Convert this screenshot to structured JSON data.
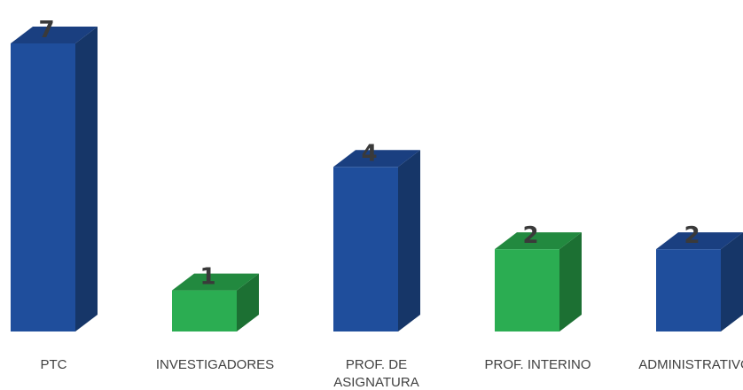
{
  "chart_data": {
    "type": "bar",
    "categories": [
      "PTC",
      "INVESTIGADORES",
      "PROF. DE ASIGNATURA",
      "PROF. INTERINO",
      "ADMINISTRATIVOS"
    ],
    "category_lines": [
      [
        "PTC"
      ],
      [
        "INVESTIGADORES"
      ],
      [
        "PROF. DE",
        "ASIGNATURA"
      ],
      [
        "PROF. INTERINO"
      ],
      [
        "ADMINISTRATIVOS"
      ]
    ],
    "values": [
      7,
      1,
      4,
      2,
      2
    ],
    "value_labels": [
      "7",
      "1",
      "4",
      "2",
      "2"
    ],
    "bar_colors": [
      "blue",
      "green",
      "blue",
      "green",
      "blue"
    ],
    "colors": {
      "blue": {
        "front": "#1f4e9c",
        "side": "#163668",
        "top": "#1a3f80"
      },
      "green": {
        "front": "#2bad52",
        "side": "#1c7033",
        "top": "#22893f"
      }
    },
    "ylim": [
      0,
      7
    ],
    "title": "",
    "xlabel": "",
    "ylabel": "",
    "grid": false,
    "legend": "none"
  }
}
